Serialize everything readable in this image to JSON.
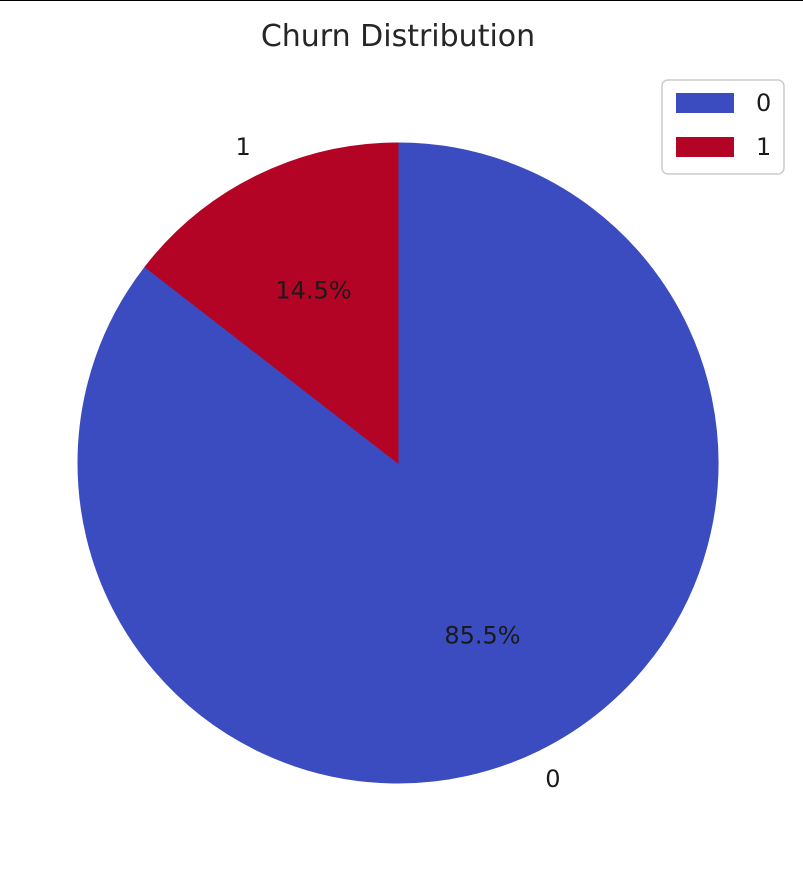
{
  "chart_data": {
    "type": "pie",
    "title": "Churn Distribution",
    "categories": [
      "0",
      "1"
    ],
    "values": [
      85.5,
      14.5
    ],
    "percent_labels": [
      "85.5%",
      "14.5%"
    ],
    "colors": [
      "#3b4cc0",
      "#b40426"
    ],
    "start_angle_deg": 90,
    "direction": "clockwise",
    "legend": {
      "placement": "top-right",
      "entries": [
        "0",
        "1"
      ]
    }
  }
}
